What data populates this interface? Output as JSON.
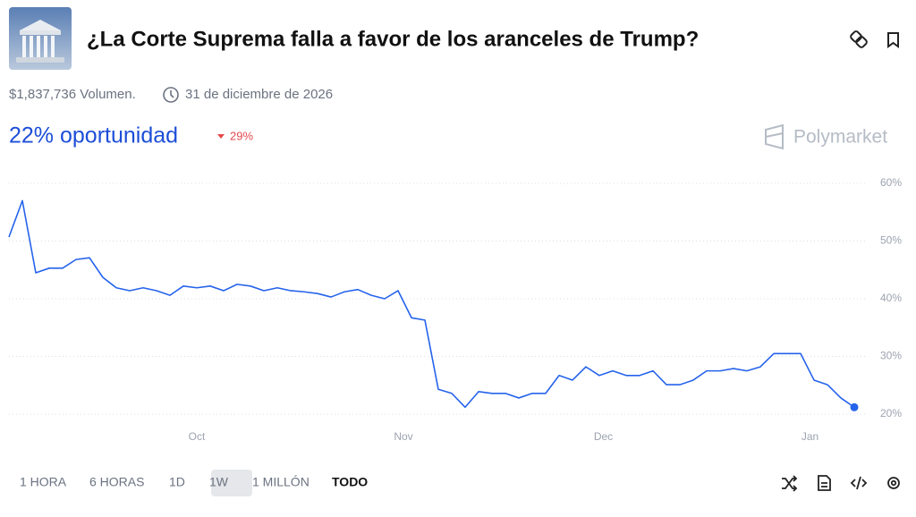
{
  "header": {
    "title": "¿La Corte Suprema falla a favor de los aranceles de Trump?",
    "volume": "$1,837,736 Volumen.",
    "end_date": "31 de diciembre de 2026",
    "chance": "22% oportunidad",
    "change": "29%",
    "brand": "Polymarket"
  },
  "chart_data": {
    "type": "line",
    "color": "#2563eb",
    "values": [
      50.7,
      57,
      44.5,
      45.3,
      45.3,
      46.8,
      47.1,
      43.7,
      41.9,
      41.4,
      41.9,
      41.4,
      40.6,
      42.2,
      41.9,
      42.2,
      41.4,
      42.5,
      42.2,
      41.4,
      41.9,
      41.4,
      41.2,
      40.9,
      40.3,
      41.2,
      41.6,
      40.6,
      40.0,
      41.4,
      36.7,
      36.3,
      24.3,
      23.6,
      21.2,
      23.9,
      23.6,
      23.6,
      22.8,
      23.6,
      23.6,
      26.7,
      25.9,
      28.2,
      26.7,
      27.5,
      26.7,
      26.7,
      27.5,
      25.1,
      25.1,
      25.9,
      27.5,
      27.5,
      27.9,
      27.5,
      28.2,
      30.5,
      30.5,
      30.5,
      25.9,
      25.1,
      22.8,
      21.2
    ],
    "xlim": [
      0,
      63
    ],
    "xticks": [
      {
        "value": 14,
        "label": "Oct"
      },
      {
        "value": 29.4,
        "label": "Nov"
      },
      {
        "value": 44.3,
        "label": "Dec"
      },
      {
        "value": 59.7,
        "label": "Jan"
      }
    ],
    "ylim": [
      20,
      60
    ],
    "yticks": [
      {
        "value": 20,
        "label": "20%"
      },
      {
        "value": 30,
        "label": "30%"
      },
      {
        "value": 40,
        "label": "40%"
      },
      {
        "value": 50,
        "label": "50%"
      },
      {
        "value": 60,
        "label": "60%"
      }
    ],
    "grid": true
  },
  "controls": {
    "ranges": [
      "1 HORA",
      "6 HORAS",
      "1D",
      "1W",
      "1 MILLÓN",
      "TODO"
    ]
  }
}
